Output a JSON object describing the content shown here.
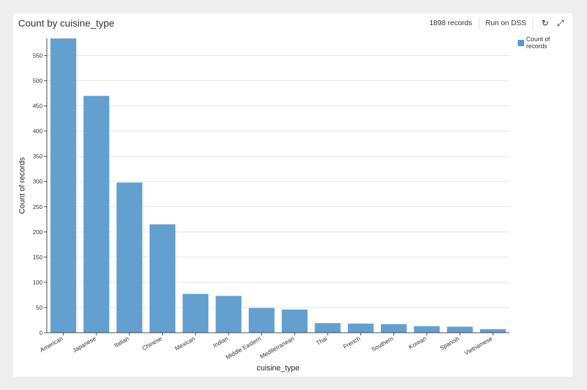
{
  "header": {
    "title": "Count by cuisine_type",
    "records": "1898 records",
    "run_label": "Run on DSS",
    "refresh_icon": "refresh-icon",
    "expand_icon": "expand-icon"
  },
  "legend": {
    "label": "Count of records",
    "color": "#5b9bcc"
  },
  "chart_data": {
    "type": "bar",
    "categories": [
      "American",
      "Japanese",
      "Italian",
      "Chinese",
      "Mexican",
      "Indian",
      "Middle Eastern",
      "Mediterranean",
      "Thai",
      "French",
      "Southern",
      "Korean",
      "Spanish",
      "Vietnamese"
    ],
    "series": [
      {
        "name": "Count of records",
        "values": [
          584,
          470,
          298,
          215,
          77,
          73,
          49,
          46,
          19,
          18,
          17,
          13,
          12,
          7
        ]
      }
    ],
    "xlabel": "cuisine_type",
    "ylabel": "Count of records",
    "ylim": [
      0,
      584
    ],
    "yticks": [
      0,
      50,
      100,
      150,
      200,
      250,
      300,
      350,
      400,
      450,
      500,
      550
    ],
    "grid": true,
    "legend_position": "top-right"
  }
}
